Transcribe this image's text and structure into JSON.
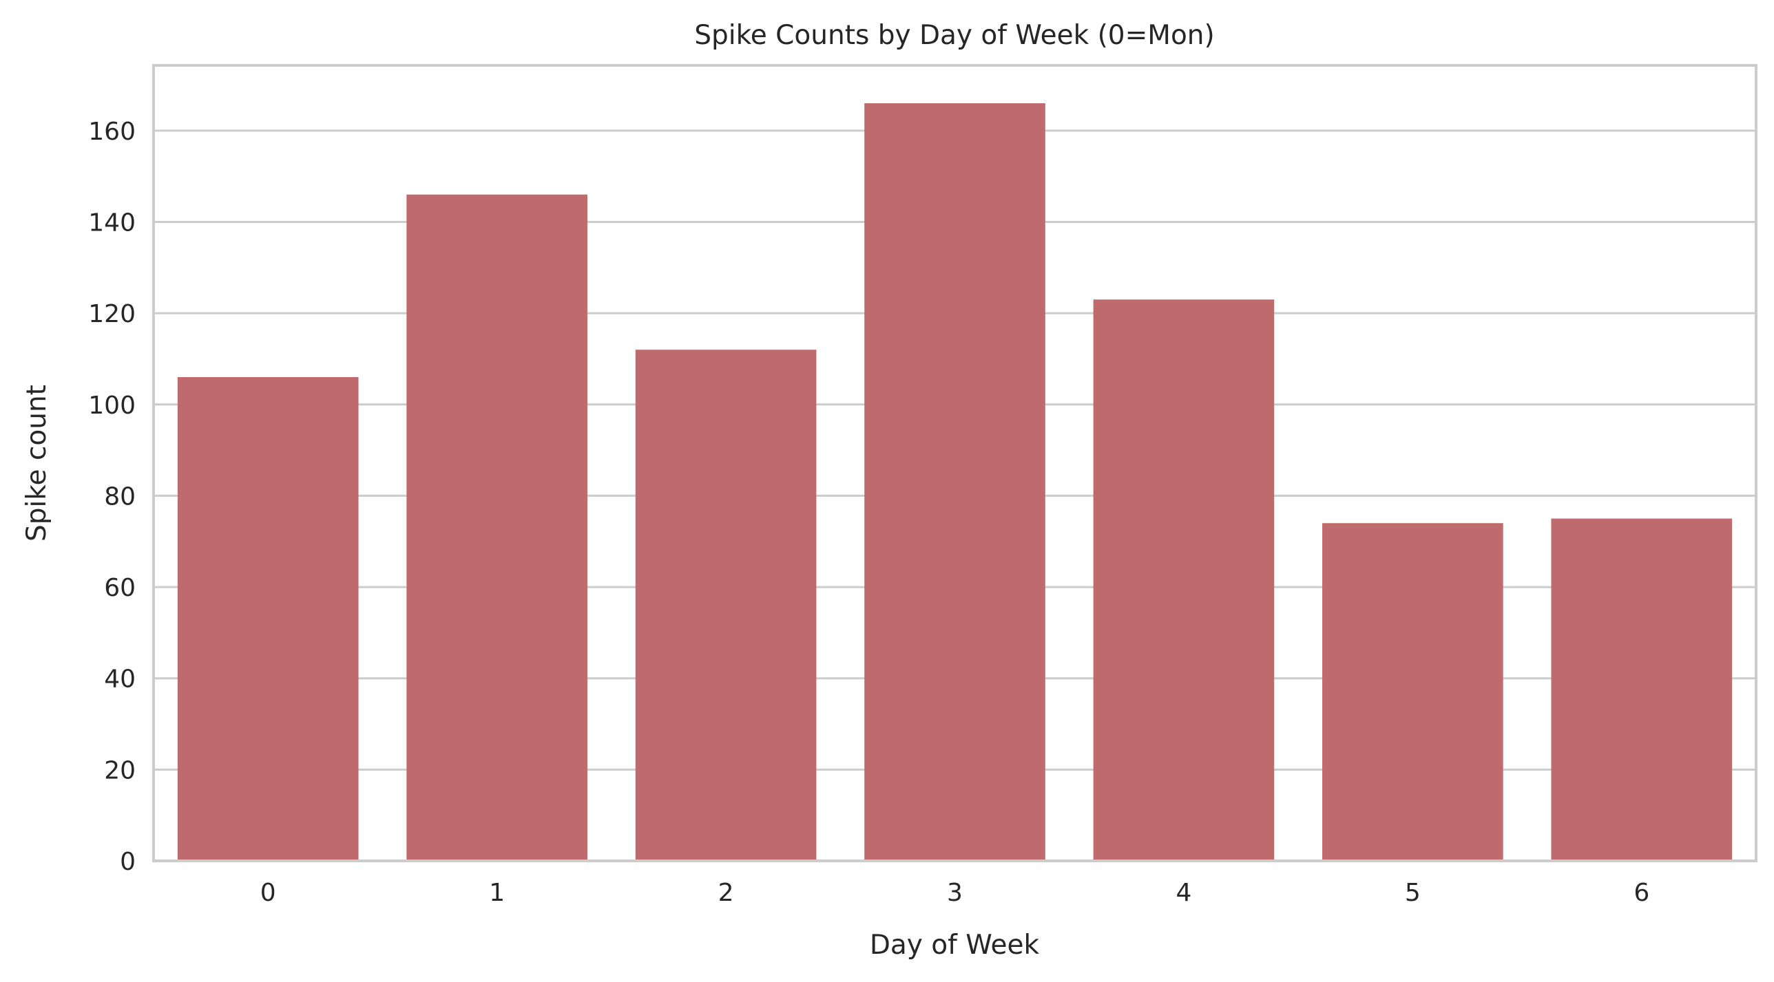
{
  "chart_data": {
    "type": "bar",
    "title": "Spike Counts by Day of Week (0=Mon)",
    "xlabel": "Day of Week",
    "ylabel": "Spike count",
    "categories": [
      "0",
      "1",
      "2",
      "3",
      "4",
      "5",
      "6"
    ],
    "values": [
      106,
      146,
      112,
      166,
      123,
      74,
      75
    ],
    "ylim": [
      0,
      174.3
    ],
    "yticks": [
      "0",
      "20",
      "40",
      "60",
      "80",
      "100",
      "120",
      "140",
      "160"
    ],
    "grid": "horizontal",
    "bar_color": "#bf6a6c",
    "grid_color": "#cccccc",
    "text_color": "#262626"
  }
}
